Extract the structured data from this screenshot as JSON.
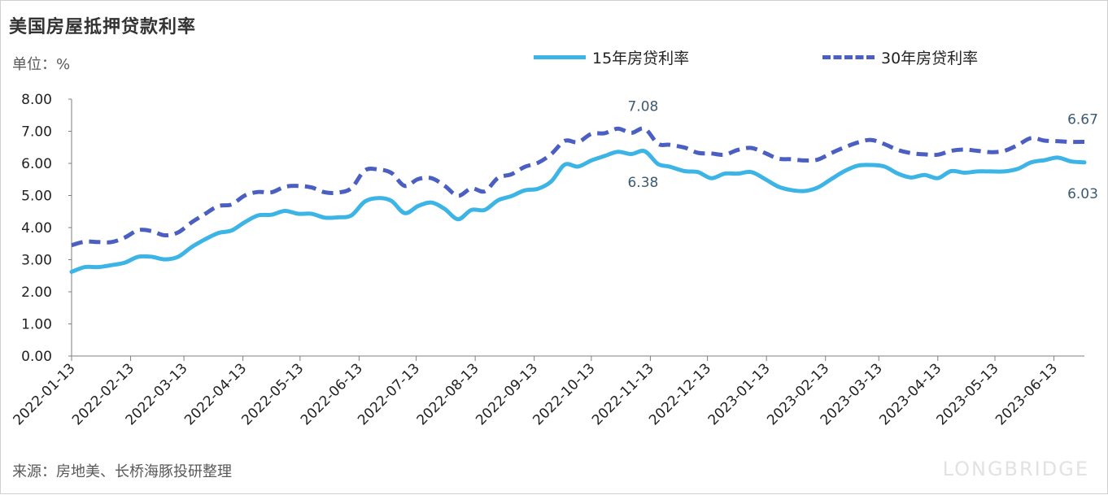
{
  "title": "美国房屋抵押贷款利率",
  "unit_label": "单位：%",
  "source": "来源：房地美、长桥海豚投研整理",
  "watermark": "LONGBRIDGE",
  "colors": {
    "series15": "#3cb4e5",
    "series30": "#4a5fc1",
    "axis": "#7f7f7f",
    "annot": "#3b5a74"
  },
  "chart_data": {
    "type": "line",
    "title": "美国房屋抵押贷款利率",
    "ylabel": "单位：%",
    "ylim": [
      0,
      8
    ],
    "yticks": [
      "0.00",
      "1.00",
      "2.00",
      "3.00",
      "4.00",
      "5.00",
      "6.00",
      "7.00",
      "8.00"
    ],
    "xticks": [
      "2022-01-13",
      "2022-02-13",
      "2022-03-13",
      "2022-04-13",
      "2022-05-13",
      "2022-06-13",
      "2022-07-13",
      "2022-08-13",
      "2022-09-13",
      "2022-10-13",
      "2022-11-13",
      "2022-12-13",
      "2023-01-13",
      "2023-02-13",
      "2023-03-13",
      "2023-04-13",
      "2023-05-13",
      "2023-06-13"
    ],
    "legend_position": "top",
    "x": [
      "2022-01-13",
      "2022-01-20",
      "2022-01-27",
      "2022-02-03",
      "2022-02-10",
      "2022-02-17",
      "2022-02-24",
      "2022-03-03",
      "2022-03-10",
      "2022-03-17",
      "2022-03-24",
      "2022-03-31",
      "2022-04-07",
      "2022-04-14",
      "2022-04-21",
      "2022-04-28",
      "2022-05-05",
      "2022-05-12",
      "2022-05-19",
      "2022-05-26",
      "2022-06-02",
      "2022-06-09",
      "2022-06-16",
      "2022-06-23",
      "2022-06-30",
      "2022-07-07",
      "2022-07-14",
      "2022-07-21",
      "2022-07-28",
      "2022-08-04",
      "2022-08-11",
      "2022-08-18",
      "2022-08-25",
      "2022-09-01",
      "2022-09-08",
      "2022-09-15",
      "2022-09-22",
      "2022-09-29",
      "2022-10-06",
      "2022-10-13",
      "2022-10-20",
      "2022-10-27",
      "2022-11-03",
      "2022-11-10",
      "2022-11-17",
      "2022-11-23",
      "2022-12-01",
      "2022-12-08",
      "2022-12-15",
      "2022-12-22",
      "2022-12-29",
      "2023-01-05",
      "2023-01-12",
      "2023-01-19",
      "2023-01-26",
      "2023-02-02",
      "2023-02-09",
      "2023-02-16",
      "2023-02-23",
      "2023-03-02",
      "2023-03-09",
      "2023-03-16",
      "2023-03-23",
      "2023-03-30",
      "2023-04-06",
      "2023-04-13",
      "2023-04-20",
      "2023-04-27",
      "2023-05-04",
      "2023-05-11",
      "2023-05-18",
      "2023-05-25",
      "2023-06-01",
      "2023-06-08",
      "2023-06-15",
      "2023-06-22",
      "2023-06-29"
    ],
    "series": [
      {
        "name": "15年房贷利率",
        "style": "solid",
        "values": [
          2.62,
          2.77,
          2.77,
          2.83,
          2.91,
          3.09,
          3.09,
          3.01,
          3.09,
          3.39,
          3.63,
          3.83,
          3.91,
          4.17,
          4.38,
          4.4,
          4.52,
          4.43,
          4.43,
          4.31,
          4.32,
          4.38,
          4.81,
          4.92,
          4.83,
          4.45,
          4.67,
          4.78,
          4.58,
          4.26,
          4.55,
          4.55,
          4.85,
          4.98,
          5.16,
          5.21,
          5.44,
          5.96,
          5.9,
          6.09,
          6.23,
          6.36,
          6.29,
          6.38,
          5.98,
          5.9,
          5.76,
          5.73,
          5.54,
          5.68,
          5.68,
          5.73,
          5.52,
          5.28,
          5.17,
          5.14,
          5.25,
          5.51,
          5.76,
          5.93,
          5.95,
          5.9,
          5.68,
          5.56,
          5.64,
          5.54,
          5.76,
          5.71,
          5.75,
          5.75,
          5.75,
          5.83,
          6.03,
          6.1,
          6.18,
          6.06,
          6.03
        ]
      },
      {
        "name": "30年房贷利率",
        "style": "dashed",
        "values": [
          3.45,
          3.56,
          3.55,
          3.55,
          3.69,
          3.92,
          3.89,
          3.76,
          3.85,
          4.16,
          4.42,
          4.67,
          4.72,
          5.0,
          5.11,
          5.1,
          5.27,
          5.3,
          5.25,
          5.1,
          5.09,
          5.23,
          5.78,
          5.81,
          5.7,
          5.3,
          5.51,
          5.54,
          5.3,
          4.99,
          5.22,
          5.13,
          5.55,
          5.66,
          5.89,
          6.02,
          6.29,
          6.7,
          6.66,
          6.92,
          6.94,
          7.08,
          6.95,
          7.08,
          6.61,
          6.58,
          6.49,
          6.33,
          6.31,
          6.27,
          6.42,
          6.48,
          6.33,
          6.15,
          6.13,
          6.09,
          6.12,
          6.32,
          6.5,
          6.65,
          6.73,
          6.6,
          6.42,
          6.32,
          6.28,
          6.27,
          6.39,
          6.43,
          6.39,
          6.35,
          6.39,
          6.57,
          6.79,
          6.71,
          6.69,
          6.67,
          6.67
        ]
      }
    ],
    "annotations": [
      {
        "text": "7.08",
        "series": "30年房贷利率",
        "index": 43
      },
      {
        "text": "6.38",
        "series": "15年房贷利率",
        "index": 43
      },
      {
        "text": "6.67",
        "series": "30年房贷利率",
        "index": 76
      },
      {
        "text": "6.03",
        "series": "15年房贷利率",
        "index": 76
      }
    ]
  }
}
